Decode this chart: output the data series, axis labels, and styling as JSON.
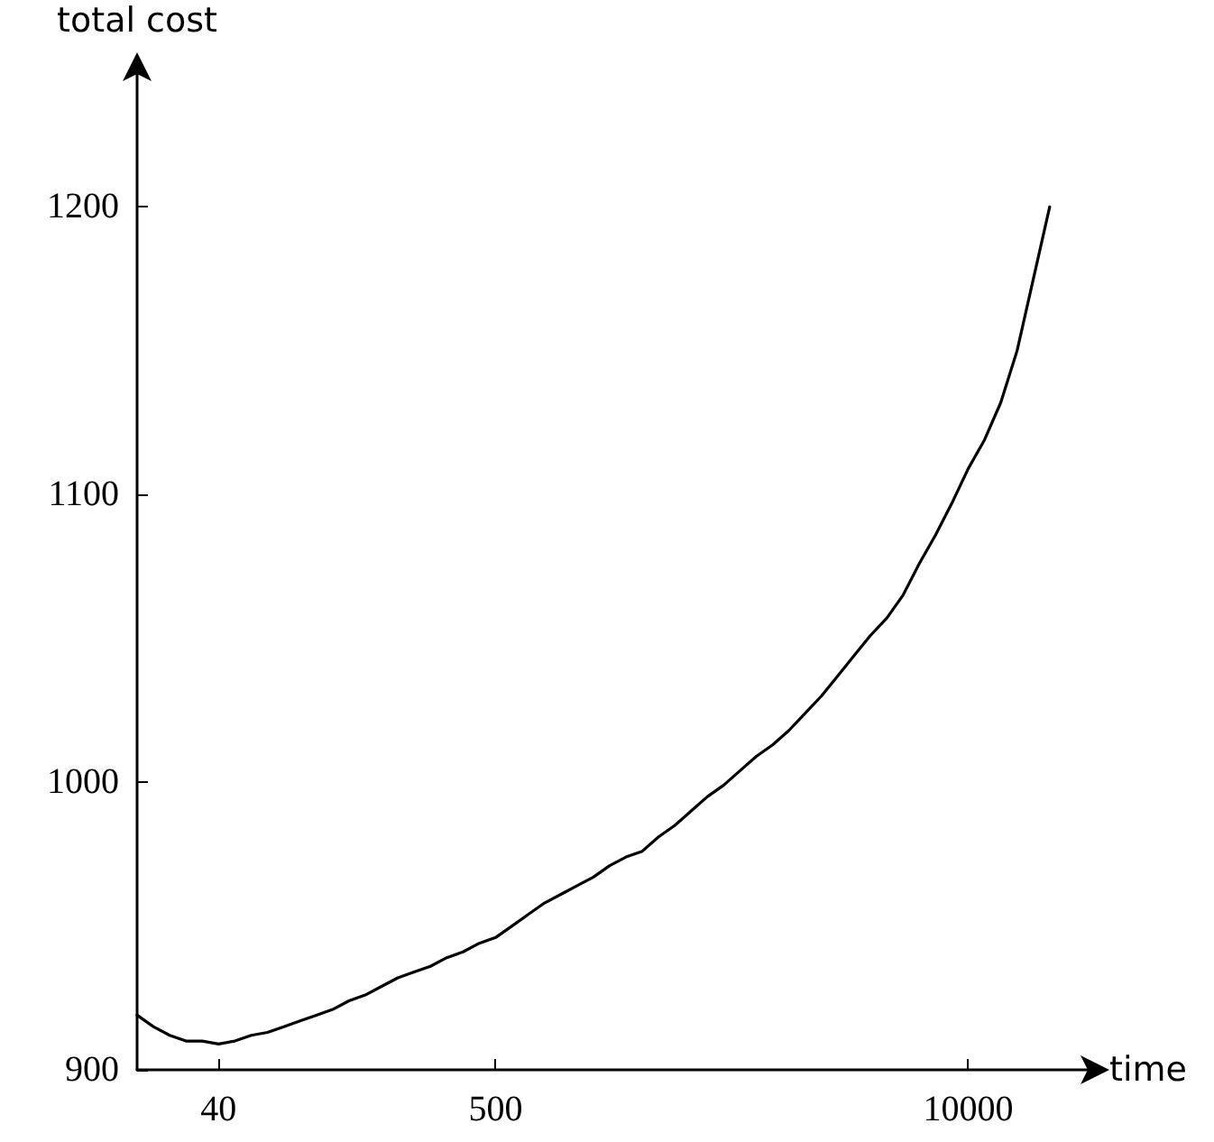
{
  "chart_data": {
    "type": "line",
    "xlabel": "time",
    "ylabel": "total cost",
    "categories": [
      null,
      null,
      null,
      null,
      null,
      "40",
      null,
      null,
      null,
      null,
      null,
      null,
      null,
      null,
      null,
      null,
      null,
      null,
      null,
      null,
      null,
      null,
      "500",
      null,
      null,
      null,
      null,
      null,
      null,
      null,
      null,
      null,
      null,
      null,
      null,
      null,
      null,
      null,
      null,
      null,
      null,
      null,
      null,
      null,
      null,
      null,
      null,
      null,
      null,
      null,
      null,
      "10000",
      null,
      null,
      null,
      null,
      null,
      null,
      null,
      null
    ],
    "series": [
      {
        "color": "#000000",
        "values": [
          919,
          915,
          912,
          910,
          910,
          909,
          910,
          912,
          913,
          915,
          917,
          919,
          921,
          924,
          926,
          929,
          932,
          934,
          936,
          939,
          941,
          944,
          946,
          950,
          954,
          958,
          961,
          964,
          967,
          971,
          974,
          976,
          981,
          985,
          990,
          995,
          999,
          1004,
          1009,
          1013,
          1018,
          1024,
          1030,
          1037,
          1044,
          1051,
          1057,
          1065,
          1076,
          1086,
          1097,
          1109,
          1119,
          1132,
          1150,
          1175,
          1200,
          null,
          null,
          null
        ]
      }
    ],
    "ylim": [
      900,
      1250
    ],
    "yticks": [
      900,
      1000,
      1100,
      1200
    ],
    "grid": false,
    "marker": "none",
    "line_style": "solid"
  }
}
